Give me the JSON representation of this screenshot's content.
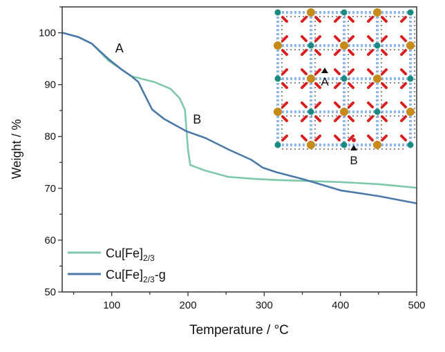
{
  "chart_data": {
    "type": "line",
    "xlabel": "Temperature / °C",
    "ylabel": "Weight / %",
    "xlim": [
      35,
      500
    ],
    "ylim": [
      50,
      105
    ],
    "xticks": [
      100,
      200,
      300,
      400,
      500
    ],
    "yticks": [
      50,
      60,
      70,
      80,
      90,
      100
    ],
    "grid": false,
    "legend_placement": "bottom-left",
    "series": [
      {
        "name": "Cu[Fe]2/3",
        "name_main": "Cu[Fe]",
        "name_sub": "2/3",
        "name_suffix": "",
        "color": "#7fc8aa",
        "x": [
          35.5,
          56,
          74,
          96,
          114,
          126,
          132,
          156,
          177,
          189,
          196,
          198,
          200,
          203,
          223,
          253,
          289,
          316,
          360,
          400,
          450,
          500
        ],
        "y": [
          100,
          99.2,
          97.9,
          94.6,
          92.8,
          91.6,
          91.4,
          90.5,
          89.2,
          87.4,
          85.2,
          81.5,
          77.5,
          74.5,
          73.4,
          72.2,
          71.8,
          71.6,
          71.4,
          71.2,
          70.8,
          70.1
        ]
      },
      {
        "name": "Cu[Fe]2/3-g",
        "name_main": "Cu[Fe]",
        "name_sub": "2/3",
        "name_suffix": "-g",
        "color": "#4a78a8",
        "x": [
          35.5,
          56,
          74,
          96,
          114,
          126,
          135,
          144,
          153,
          168.5,
          198,
          223,
          253,
          283,
          298,
          316,
          350,
          400,
          450,
          500
        ],
        "y": [
          100,
          99.2,
          97.9,
          94.9,
          92.8,
          91.6,
          90.5,
          87.8,
          85.2,
          83.4,
          81,
          79.7,
          77.5,
          75.5,
          74,
          73.1,
          71.8,
          69.6,
          68.5,
          67.1
        ]
      }
    ],
    "annotations": [
      {
        "text": "A",
        "x": 110,
        "y": 96.2
      },
      {
        "text": "B",
        "x": 212,
        "y": 82.5
      }
    ]
  },
  "inset": {
    "label_a": "A",
    "label_b": "B",
    "colors": {
      "teal": "#1a8a80",
      "orange": "#c98a1c",
      "red": "#d81e1e",
      "blue": "#8fb8ea",
      "gray": "#888888"
    }
  }
}
